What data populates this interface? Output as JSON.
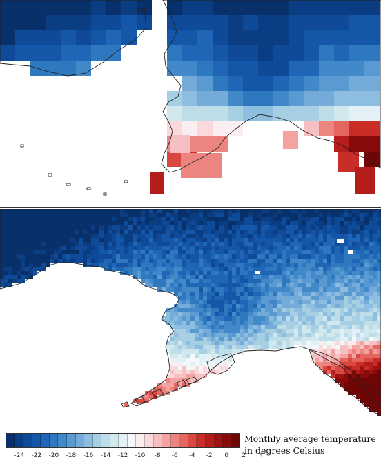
{
  "legend": {
    "title_line1": "Monthly average temperature",
    "title_line2": "in degrees Celsius",
    "tick_labels": [
      "-24",
      "-22",
      "-20",
      "-18",
      "-16",
      "-14",
      "-12",
      "-10",
      "-8",
      "-6",
      "-4",
      "-2",
      "0",
      "2",
      "4"
    ],
    "colors": [
      "#08306b",
      "#0b3d82",
      "#0f4a98",
      "#1457a8",
      "#1f67b6",
      "#2e78c0",
      "#4189c9",
      "#5a9ad2",
      "#74abd9",
      "#8dbddf",
      "#a6cfe4",
      "#bddde9",
      "#d2e8ef",
      "#e3f1f6",
      "#f2f8fb",
      "#fbeef0",
      "#f9d9dc",
      "#f6c0c2",
      "#f2a3a2",
      "#ec8580",
      "#e4665e",
      "#d94840",
      "#c92d28",
      "#b51d1a",
      "#9e1212",
      "#870b0b",
      "#6e0606"
    ]
  },
  "maps": {
    "top_panel": "coarse-resolution",
    "bottom_panel": "fine-resolution"
  }
}
